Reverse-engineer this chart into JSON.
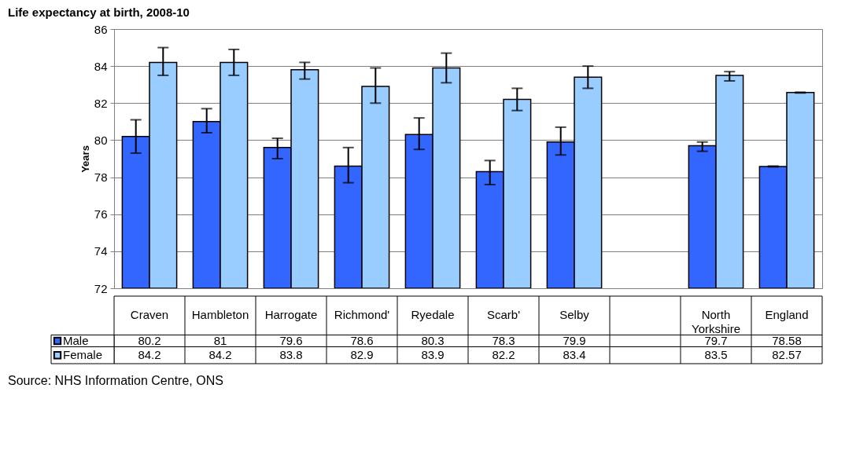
{
  "chart_data": {
    "type": "bar",
    "title": "Life expectancy at birth, 2008-10",
    "ylabel": "Years",
    "categories": [
      "Craven",
      "Hambleton",
      "Harrogate",
      "Richmond'",
      "Ryedale",
      "Scarb'",
      "Selby",
      null,
      "North Yorkshire",
      "England"
    ],
    "series": [
      {
        "name": "Male",
        "color": "#3366ff",
        "values": [
          80.2,
          81,
          79.6,
          78.6,
          80.3,
          78.3,
          79.9,
          null,
          79.7,
          78.58
        ],
        "errors": [
          [
            79.3,
            81.1
          ],
          [
            80.4,
            81.7
          ],
          [
            79.0,
            80.1
          ],
          [
            77.7,
            79.6
          ],
          [
            79.5,
            81.2
          ],
          [
            77.6,
            78.9
          ],
          [
            79.2,
            80.7
          ],
          null,
          [
            79.4,
            79.9
          ],
          0.02
        ]
      },
      {
        "name": "Female",
        "color": "#99ccff",
        "values": [
          84.2,
          84.2,
          83.8,
          82.9,
          83.9,
          82.2,
          83.4,
          null,
          83.5,
          82.57
        ],
        "errors": [
          [
            83.5,
            85.0
          ],
          [
            83.5,
            84.9
          ],
          [
            83.3,
            84.2
          ],
          [
            82.0,
            83.9
          ],
          [
            83.1,
            84.7
          ],
          [
            81.6,
            82.8
          ],
          [
            82.8,
            84.0
          ],
          null,
          [
            83.2,
            83.7
          ],
          0.02
        ]
      }
    ],
    "ylim": [
      72,
      86
    ],
    "yticks": [
      72,
      74,
      76,
      78,
      80,
      82,
      84,
      86
    ],
    "grid": "y",
    "legend": "bottom left",
    "data_labels": true,
    "annotations": [
      "Source: NHS Information Centre, ONS"
    ]
  }
}
